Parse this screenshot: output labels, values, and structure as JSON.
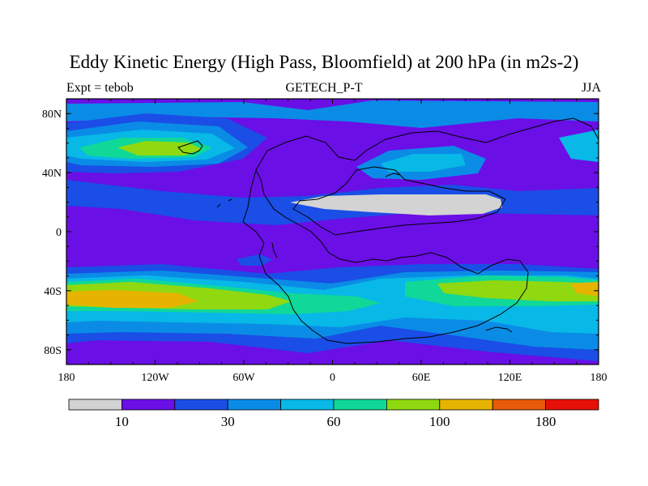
{
  "title": "Eddy Kinetic Energy (High Pass, Bloomfield) at 200 hPa (in m2s-2)",
  "subtitle_left": "Expt = tebob",
  "subtitle_center": "GETECH_P-T",
  "subtitle_right": "JJA",
  "axes": {
    "lon_ticks": [
      {
        "value": -180,
        "label": "180"
      },
      {
        "value": -120,
        "label": "120W"
      },
      {
        "value": -60,
        "label": "60W"
      },
      {
        "value": 0,
        "label": "0"
      },
      {
        "value": 60,
        "label": "60E"
      },
      {
        "value": 120,
        "label": "120E"
      },
      {
        "value": 180,
        "label": "180"
      }
    ],
    "lat_ticks": [
      {
        "value": 80,
        "label": "80N"
      },
      {
        "value": 40,
        "label": "40N"
      },
      {
        "value": 0,
        "label": "0"
      },
      {
        "value": -40,
        "label": "40S"
      },
      {
        "value": -80,
        "label": "80S"
      }
    ],
    "lon_range": [
      -180,
      180
    ],
    "lat_range": [
      -90,
      90
    ]
  },
  "colorbar": {
    "colors": [
      "#d3d3d3",
      "#6a0fe6",
      "#1a4ee6",
      "#0a8ce6",
      "#08b8e6",
      "#10d898",
      "#90d810",
      "#e6b400",
      "#e65a08",
      "#e61008"
    ],
    "labels": [
      {
        "boundary": 1,
        "text": "10"
      },
      {
        "boundary": 3,
        "text": "30"
      },
      {
        "boundary": 5,
        "text": "60"
      },
      {
        "boundary": 7,
        "text": "100"
      },
      {
        "boundary": 9,
        "text": "180"
      }
    ]
  }
}
